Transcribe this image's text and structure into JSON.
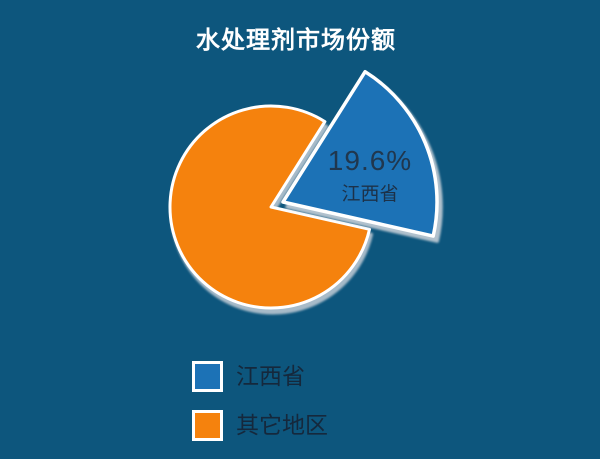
{
  "header": {
    "title": "水处理剂市场份额"
  },
  "colors": {
    "background": "#0D567D",
    "title_text": "#FFFFFF",
    "slice_callout_percent_text": "#20374E",
    "slice_callout_name_text": "#1C3148",
    "legend_text": "#15283C",
    "slice_outline": "#FFFFFF",
    "slice_shadow": "#C3CDD6"
  },
  "chart_data": {
    "type": "pie",
    "title": "水处理剂市场份额",
    "slices": [
      {
        "label": "江西省",
        "value": 19.6,
        "data_label": "19.6%",
        "color": "#1C72B6",
        "exploded": true
      },
      {
        "label": "其它地区",
        "value": 80.4,
        "data_label": "",
        "color": "#F5820D",
        "exploded": false
      }
    ],
    "value_unit": "percent",
    "total": 100,
    "legend_position": "bottom-left",
    "data_label_shown_for": "江西省"
  }
}
